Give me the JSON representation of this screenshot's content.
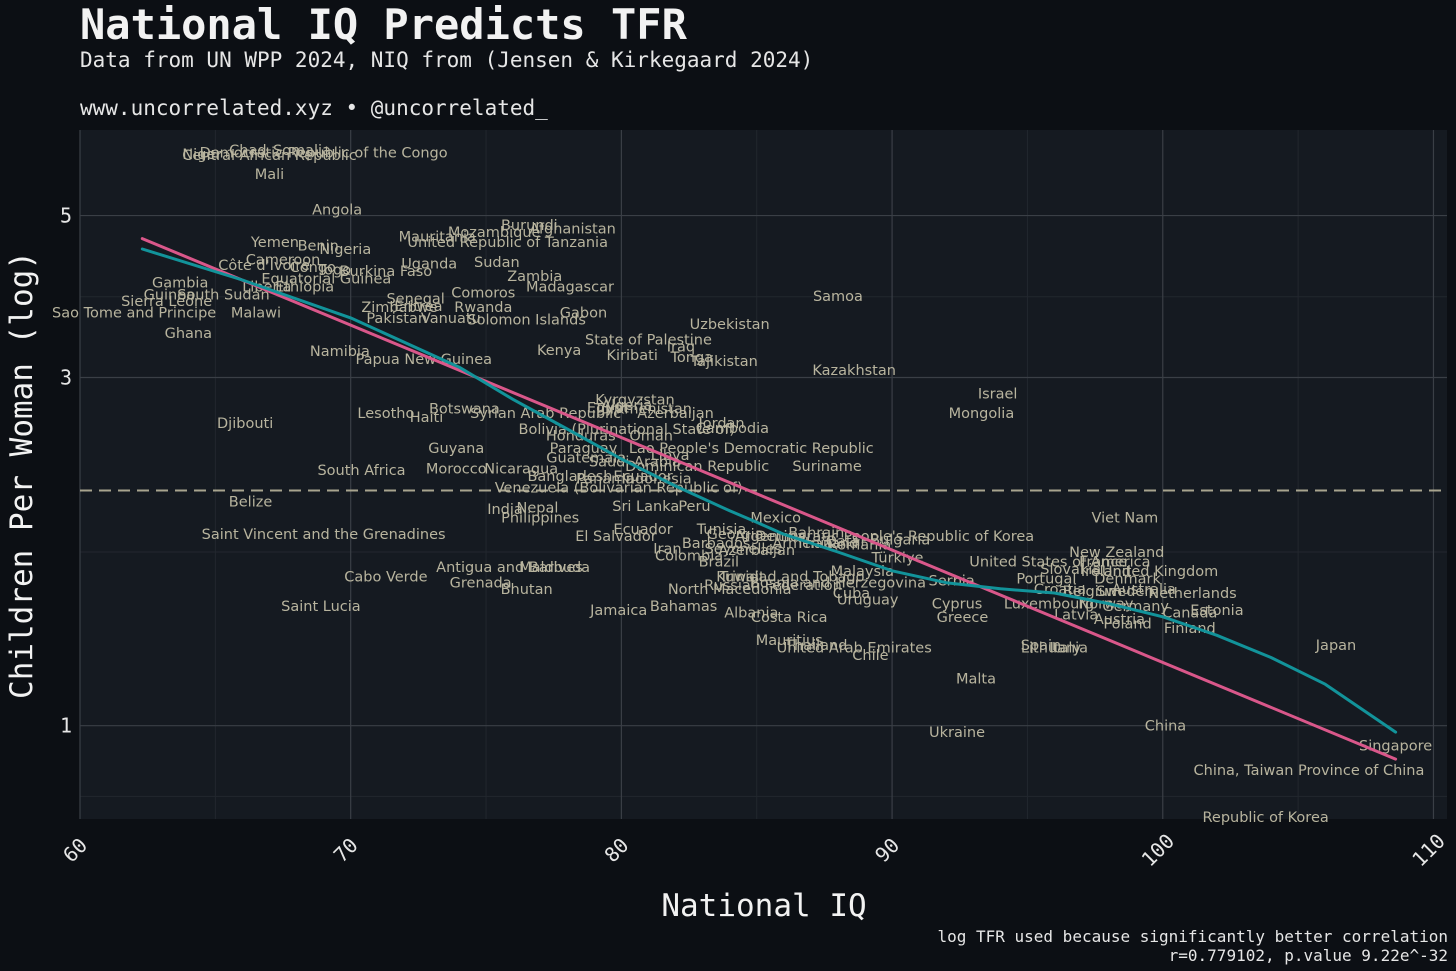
{
  "header": {
    "title": "National IQ Predicts TFR",
    "subtitle": "Data from UN WPP 2024, NIQ from (Jensen & Kirkegaard 2024)",
    "credit": "www.uncorrelated.xyz • @uncorrelated_"
  },
  "caption": {
    "line1": "log TFR used because significantly better correlation",
    "line2": "r=0.779102, p.value 9.22e^-32"
  },
  "colors": {
    "background": "#0c0f14",
    "panel": "#151a21",
    "grid": "#3a3f46",
    "label": "#b8b49e",
    "linear_fit": "#d9578a",
    "smooth_fit": "#12939a",
    "reference_line": "#a8a48e"
  },
  "chart_data": {
    "type": "scatter",
    "title": "National IQ Predicts TFR",
    "xlabel": "National IQ",
    "ylabel": "Children Per Woman (log)",
    "xlim": [
      60,
      110.5
    ],
    "ylim": [
      0.745,
      6.55
    ],
    "y_scale": "log",
    "x_ticks": [
      60,
      70,
      80,
      90,
      100,
      110
    ],
    "y_ticks": [
      1,
      3,
      5
    ],
    "grid": true,
    "reference_line_y": 2.1,
    "points": [
      {
        "label": "Democratic Republic of the Congo",
        "x": 69.0,
        "y": 6.1
      },
      {
        "label": "Niger",
        "x": 64.5,
        "y": 6.07
      },
      {
        "label": "Chad",
        "x": 66.2,
        "y": 6.15
      },
      {
        "label": "Somalia",
        "x": 68.2,
        "y": 6.15
      },
      {
        "label": "Central African Republic",
        "x": 67.0,
        "y": 6.05
      },
      {
        "label": "Mali",
        "x": 67.0,
        "y": 5.7
      },
      {
        "label": "Angola",
        "x": 69.5,
        "y": 5.1
      },
      {
        "label": "Afghanistan",
        "x": 78.2,
        "y": 4.8
      },
      {
        "label": "Burundi",
        "x": 76.6,
        "y": 4.85
      },
      {
        "label": "Mozambique",
        "x": 75.3,
        "y": 4.75
      },
      {
        "label": "Mauritania",
        "x": 73.2,
        "y": 4.68
      },
      {
        "label": "United Republic of Tanzania",
        "x": 75.8,
        "y": 4.6
      },
      {
        "label": "Yemen",
        "x": 67.2,
        "y": 4.6
      },
      {
        "label": "Benin",
        "x": 68.8,
        "y": 4.55
      },
      {
        "label": "Nigeria",
        "x": 69.8,
        "y": 4.5
      },
      {
        "label": "Cameroon",
        "x": 67.5,
        "y": 4.35
      },
      {
        "label": "Uganda",
        "x": 72.9,
        "y": 4.3
      },
      {
        "label": "Sudan",
        "x": 75.4,
        "y": 4.32
      },
      {
        "label": "Côte d'Ivoire",
        "x": 66.8,
        "y": 4.28
      },
      {
        "label": "Congo",
        "x": 68.6,
        "y": 4.25
      },
      {
        "label": "Togo",
        "x": 69.4,
        "y": 4.22
      },
      {
        "label": "Burkina Faso",
        "x": 71.3,
        "y": 4.2
      },
      {
        "label": "Zambia",
        "x": 76.8,
        "y": 4.13
      },
      {
        "label": "Equatorial Guinea",
        "x": 69.1,
        "y": 4.1
      },
      {
        "label": "Gambia",
        "x": 63.7,
        "y": 4.05
      },
      {
        "label": "Liberia",
        "x": 66.9,
        "y": 4.0
      },
      {
        "label": "Ethiopia",
        "x": 68.3,
        "y": 4.0
      },
      {
        "label": "Madagascar",
        "x": 78.1,
        "y": 4.0
      },
      {
        "label": "Guinea",
        "x": 63.3,
        "y": 3.9
      },
      {
        "label": "South Sudan",
        "x": 65.3,
        "y": 3.9
      },
      {
        "label": "Comoros",
        "x": 74.9,
        "y": 3.92
      },
      {
        "label": "Senegal",
        "x": 72.4,
        "y": 3.85
      },
      {
        "label": "Sierra Leone",
        "x": 63.2,
        "y": 3.82
      },
      {
        "label": "Zimbabwe",
        "x": 71.8,
        "y": 3.75
      },
      {
        "label": "Eritrea",
        "x": 72.5,
        "y": 3.76
      },
      {
        "label": "Rwanda",
        "x": 74.9,
        "y": 3.75
      },
      {
        "label": "Samoa",
        "x": 88.0,
        "y": 3.88
      },
      {
        "label": "Sao Tome and Principe",
        "x": 62.0,
        "y": 3.68
      },
      {
        "label": "Malawi",
        "x": 66.5,
        "y": 3.68
      },
      {
        "label": "Gabon",
        "x": 78.6,
        "y": 3.68
      },
      {
        "label": "Pakistan",
        "x": 71.7,
        "y": 3.62
      },
      {
        "label": "Vanuatu",
        "x": 73.7,
        "y": 3.62
      },
      {
        "label": "Solomon Islands",
        "x": 76.5,
        "y": 3.6
      },
      {
        "label": "Uzbekistan",
        "x": 84.0,
        "y": 3.55
      },
      {
        "label": "Ghana",
        "x": 64.0,
        "y": 3.45
      },
      {
        "label": "State of Palestine",
        "x": 81.0,
        "y": 3.38
      },
      {
        "label": "Iraq",
        "x": 82.2,
        "y": 3.31
      },
      {
        "label": "Namibia",
        "x": 69.6,
        "y": 3.26
      },
      {
        "label": "Kenya",
        "x": 77.7,
        "y": 3.27
      },
      {
        "label": "Kiribati",
        "x": 80.4,
        "y": 3.22
      },
      {
        "label": "Tonga",
        "x": 82.6,
        "y": 3.2
      },
      {
        "label": "Papua New Guinea",
        "x": 72.7,
        "y": 3.18
      },
      {
        "label": "Tajikistan",
        "x": 83.8,
        "y": 3.16
      },
      {
        "label": "Kazakhstan",
        "x": 88.6,
        "y": 3.07
      },
      {
        "label": "Israel",
        "x": 93.9,
        "y": 2.85
      },
      {
        "label": "Kyrgyzstan",
        "x": 80.5,
        "y": 2.8
      },
      {
        "label": "Algeria",
        "x": 80.2,
        "y": 2.75
      },
      {
        "label": "Egypt",
        "x": 79.5,
        "y": 2.73
      },
      {
        "label": "Turkmenistan",
        "x": 80.8,
        "y": 2.72
      },
      {
        "label": "Botswana",
        "x": 74.2,
        "y": 2.72
      },
      {
        "label": "Syrian Arab Republic",
        "x": 77.2,
        "y": 2.68
      },
      {
        "label": "Azerbaijan",
        "x": 82.0,
        "y": 2.68
      },
      {
        "label": "Lesotho",
        "x": 71.3,
        "y": 2.68
      },
      {
        "label": "Haiti",
        "x": 72.8,
        "y": 2.65
      },
      {
        "label": "Mongolia",
        "x": 93.3,
        "y": 2.68
      },
      {
        "label": "Djibouti",
        "x": 66.1,
        "y": 2.6
      },
      {
        "label": "Jordan",
        "x": 83.7,
        "y": 2.6
      },
      {
        "label": "Cambodia",
        "x": 84.1,
        "y": 2.56
      },
      {
        "label": "Bolivia (Plurinational State of)",
        "x": 80.2,
        "y": 2.55
      },
      {
        "label": "Honduras",
        "x": 78.5,
        "y": 2.5
      },
      {
        "label": "Oman",
        "x": 81.1,
        "y": 2.5
      },
      {
        "label": "Guyana",
        "x": 73.9,
        "y": 2.4
      },
      {
        "label": "Paraguay",
        "x": 78.6,
        "y": 2.4
      },
      {
        "label": "Lao People's Democratic Republic",
        "x": 84.8,
        "y": 2.4
      },
      {
        "label": "Libya",
        "x": 81.8,
        "y": 2.35
      },
      {
        "label": "Guatemala",
        "x": 78.7,
        "y": 2.33
      },
      {
        "label": "Saudi Arabia",
        "x": 80.5,
        "y": 2.3
      },
      {
        "label": "Suriname",
        "x": 87.6,
        "y": 2.27
      },
      {
        "label": "South Africa",
        "x": 70.4,
        "y": 2.24
      },
      {
        "label": "Morocco",
        "x": 73.9,
        "y": 2.25
      },
      {
        "label": "Nicaragua",
        "x": 76.3,
        "y": 2.25
      },
      {
        "label": "Dominican Republic",
        "x": 82.8,
        "y": 2.27
      },
      {
        "label": "Bangladesh",
        "x": 78.1,
        "y": 2.2
      },
      {
        "label": "Panama",
        "x": 79.4,
        "y": 2.18
      },
      {
        "label": "Ecuador",
        "x": 80.8,
        "y": 2.2
      },
      {
        "label": "Indonesia",
        "x": 81.3,
        "y": 2.18
      },
      {
        "label": "Venezuela (Bolivarian Republic of)",
        "x": 79.9,
        "y": 2.12
      },
      {
        "label": "Belize",
        "x": 66.3,
        "y": 2.03
      },
      {
        "label": "India",
        "x": 75.7,
        "y": 1.98
      },
      {
        "label": "Nepal",
        "x": 76.9,
        "y": 1.99
      },
      {
        "label": "Sri Lanka",
        "x": 80.9,
        "y": 2.0
      },
      {
        "label": "Peru",
        "x": 82.7,
        "y": 2.0
      },
      {
        "label": "Philippines",
        "x": 77.0,
        "y": 1.93
      },
      {
        "label": "Mexico",
        "x": 85.7,
        "y": 1.93
      },
      {
        "label": "Viet Nam",
        "x": 98.6,
        "y": 1.93
      },
      {
        "label": "Saint Vincent and the Grenadines",
        "x": 69.0,
        "y": 1.83
      },
      {
        "label": "El Salvador",
        "x": 79.8,
        "y": 1.82
      },
      {
        "label": "Ecuador",
        "x": 80.8,
        "y": 1.86
      },
      {
        "label": "Tunisia",
        "x": 83.7,
        "y": 1.86
      },
      {
        "label": "Georgia",
        "x": 84.2,
        "y": 1.83
      },
      {
        "label": "Argentina",
        "x": 85.5,
        "y": 1.82
      },
      {
        "label": "Bahrain",
        "x": 87.2,
        "y": 1.84
      },
      {
        "label": "Democratic People's Republic of Korea",
        "x": 90.1,
        "y": 1.82
      },
      {
        "label": "Bulgaria",
        "x": 90.3,
        "y": 1.8
      },
      {
        "label": "Barbados",
        "x": 83.5,
        "y": 1.78
      },
      {
        "label": "Armenia",
        "x": 86.7,
        "y": 1.78
      },
      {
        "label": "Thailand",
        "x": 87.6,
        "y": 1.78
      },
      {
        "label": "Qatar",
        "x": 88.3,
        "y": 1.79
      },
      {
        "label": "Romania",
        "x": 88.8,
        "y": 1.77
      },
      {
        "label": "Iran",
        "x": 81.7,
        "y": 1.75
      },
      {
        "label": "Seychelles",
        "x": 84.5,
        "y": 1.75
      },
      {
        "label": "Azerbaijan",
        "x": 85.0,
        "y": 1.74
      },
      {
        "label": "Colombia",
        "x": 82.5,
        "y": 1.71
      },
      {
        "label": "Brazil",
        "x": 83.6,
        "y": 1.68
      },
      {
        "label": "Türkiye",
        "x": 90.2,
        "y": 1.7
      },
      {
        "label": "United States of America",
        "x": 96.2,
        "y": 1.68
      },
      {
        "label": "New Zealand",
        "x": 98.3,
        "y": 1.73
      },
      {
        "label": "France",
        "x": 97.8,
        "y": 1.68
      },
      {
        "label": "Slovakia",
        "x": 96.6,
        "y": 1.64
      },
      {
        "label": "Ireland",
        "x": 97.9,
        "y": 1.63
      },
      {
        "label": "United Kingdom",
        "x": 99.9,
        "y": 1.63
      },
      {
        "label": "Antigua and Barbuda",
        "x": 76.0,
        "y": 1.65
      },
      {
        "label": "Maldives",
        "x": 77.4,
        "y": 1.65
      },
      {
        "label": "Malaysia",
        "x": 88.9,
        "y": 1.63
      },
      {
        "label": "Trinidad and Tobago",
        "x": 86.3,
        "y": 1.6
      },
      {
        "label": "Kuwait",
        "x": 84.4,
        "y": 1.6
      },
      {
        "label": "Cabo Verde",
        "x": 71.3,
        "y": 1.6
      },
      {
        "label": "Grenada",
        "x": 74.8,
        "y": 1.57
      },
      {
        "label": "Bosnia and Herzegovina",
        "x": 88.0,
        "y": 1.57
      },
      {
        "label": "Serbia",
        "x": 92.2,
        "y": 1.58
      },
      {
        "label": "Portugal",
        "x": 95.7,
        "y": 1.59
      },
      {
        "label": "Denmark",
        "x": 98.7,
        "y": 1.59
      },
      {
        "label": "Russian Federation",
        "x": 85.6,
        "y": 1.56
      },
      {
        "label": "Bhutan",
        "x": 76.5,
        "y": 1.54
      },
      {
        "label": "North Macedonia",
        "x": 84.0,
        "y": 1.54
      },
      {
        "label": "Cuba",
        "x": 88.5,
        "y": 1.52
      },
      {
        "label": "Croatia",
        "x": 96.2,
        "y": 1.54
      },
      {
        "label": "Belgium",
        "x": 97.4,
        "y": 1.53
      },
      {
        "label": "Sweden",
        "x": 98.6,
        "y": 1.53
      },
      {
        "label": "Australia",
        "x": 99.3,
        "y": 1.54
      },
      {
        "label": "Netherlands",
        "x": 101.1,
        "y": 1.52
      },
      {
        "label": "Uruguay",
        "x": 89.1,
        "y": 1.49
      },
      {
        "label": "Luxembourg",
        "x": 95.8,
        "y": 1.47
      },
      {
        "label": "Norway",
        "x": 97.9,
        "y": 1.47
      },
      {
        "label": "Germany",
        "x": 99.0,
        "y": 1.46
      },
      {
        "label": "Cyprus",
        "x": 92.4,
        "y": 1.47
      },
      {
        "label": "Saint Lucia",
        "x": 68.9,
        "y": 1.46
      },
      {
        "label": "Jamaica",
        "x": 79.9,
        "y": 1.44
      },
      {
        "label": "Bahamas",
        "x": 82.3,
        "y": 1.46
      },
      {
        "label": "Albania",
        "x": 84.8,
        "y": 1.43
      },
      {
        "label": "Latvia",
        "x": 96.8,
        "y": 1.42
      },
      {
        "label": "Estonia",
        "x": 102.0,
        "y": 1.44
      },
      {
        "label": "Canada",
        "x": 101.0,
        "y": 1.43
      },
      {
        "label": "Costa Rica",
        "x": 86.2,
        "y": 1.41
      },
      {
        "label": "Greece",
        "x": 92.6,
        "y": 1.41
      },
      {
        "label": "Austria",
        "x": 98.4,
        "y": 1.4
      },
      {
        "label": "Poland",
        "x": 98.7,
        "y": 1.38
      },
      {
        "label": "Finland",
        "x": 101.0,
        "y": 1.36
      },
      {
        "label": "Mauritius",
        "x": 86.2,
        "y": 1.31
      },
      {
        "label": "Thailand",
        "x": 87.2,
        "y": 1.29
      },
      {
        "label": "United Arab Emirates",
        "x": 88.6,
        "y": 1.28
      },
      {
        "label": "Spain",
        "x": 95.5,
        "y": 1.29
      },
      {
        "label": "Lithuania",
        "x": 96.0,
        "y": 1.28
      },
      {
        "label": "Italy",
        "x": 96.4,
        "y": 1.28
      },
      {
        "label": "Japan",
        "x": 106.4,
        "y": 1.29
      },
      {
        "label": "Chile",
        "x": 89.2,
        "y": 1.25
      },
      {
        "label": "Malta",
        "x": 93.1,
        "y": 1.16
      },
      {
        "label": "China",
        "x": 100.1,
        "y": 1.0
      },
      {
        "label": "Ukraine",
        "x": 92.4,
        "y": 0.98
      },
      {
        "label": "Singapore",
        "x": 108.6,
        "y": 0.94
      },
      {
        "label": "China, Taiwan Province of China",
        "x": 105.4,
        "y": 0.87
      },
      {
        "label": "Republic of Korea",
        "x": 103.8,
        "y": 0.75
      }
    ],
    "series": [
      {
        "type": "linear_fit",
        "x": [
          62.3,
          108.6
        ],
        "y": [
          4.65,
          0.9
        ]
      },
      {
        "type": "smooth_fit",
        "x": [
          62.3,
          66,
          70,
          74,
          76,
          78,
          80,
          82,
          84,
          85,
          86,
          88,
          90,
          92,
          94,
          96,
          98,
          100,
          102,
          104,
          106,
          108.6
        ],
        "y": [
          4.5,
          4.08,
          3.62,
          3.1,
          2.8,
          2.55,
          2.32,
          2.13,
          1.97,
          1.9,
          1.83,
          1.73,
          1.63,
          1.57,
          1.54,
          1.52,
          1.47,
          1.41,
          1.33,
          1.24,
          1.14,
          0.98
        ]
      }
    ]
  }
}
